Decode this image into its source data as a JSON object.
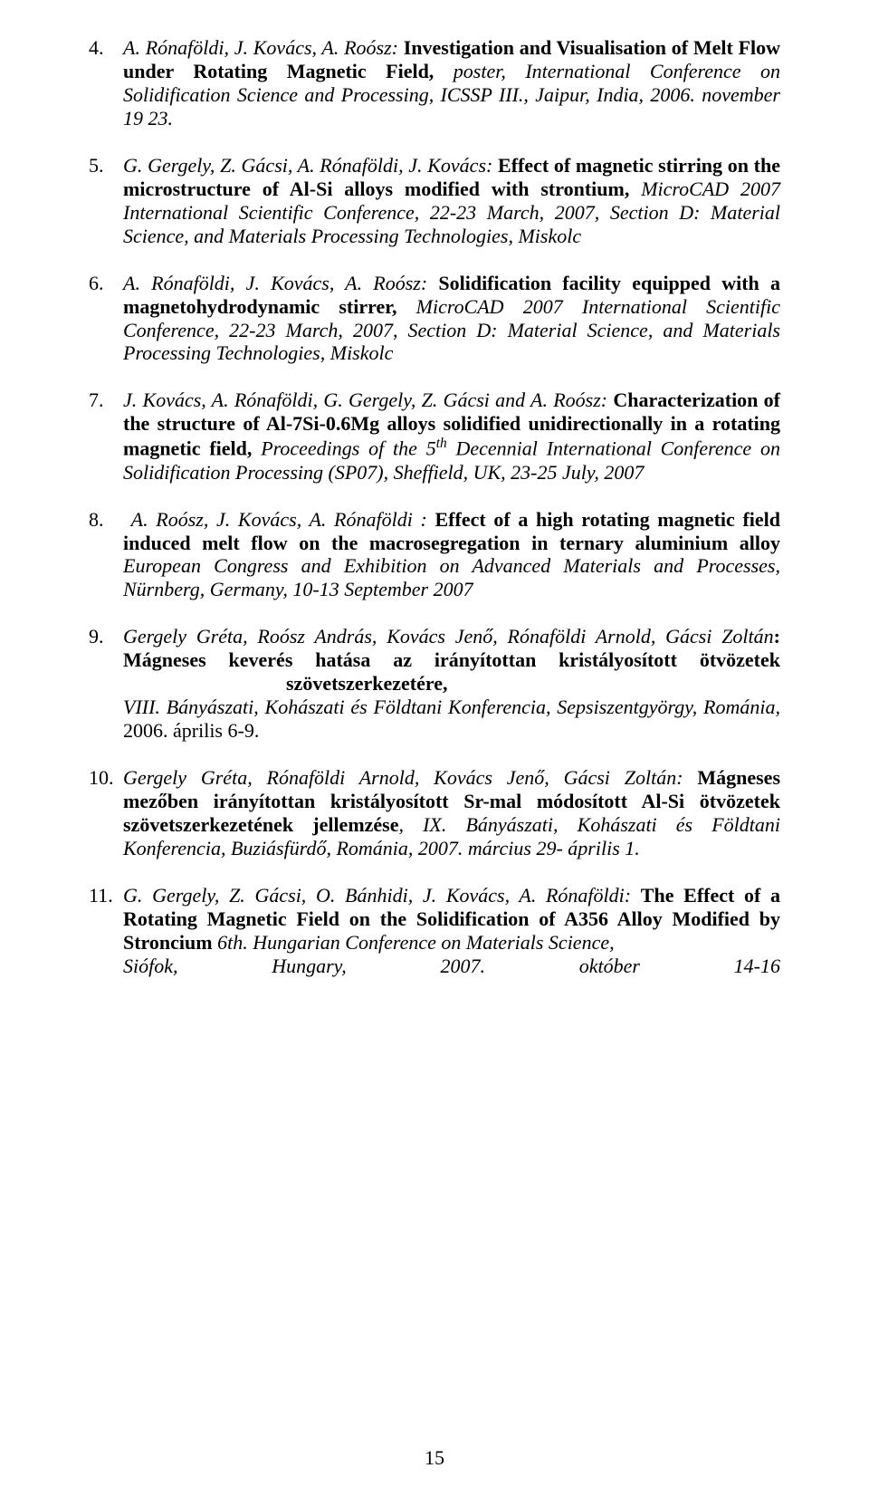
{
  "page_number": "15",
  "references": [
    {
      "authors": "A. Rónaföldi, J. Kovács, A. Roósz:",
      "title": "Investigation and Visualisation of Melt Flow under Rotating Magnetic Field,",
      "details_pre": "poster, International Conference on Solidification Science and Processing, ICSSP III., Jaipur, India, 2006. november 19 23."
    },
    {
      "authors": "G. Gergely, Z. Gácsi, A. Rónaföldi, J. Kovács:",
      "title": "Effect of magnetic stirring on the microstructure of Al-Si alloys modified with strontium,",
      "details_pre": "MicroCAD 2007 International Scientific Conference, 22-23 March, 2007, Section D: Material Science, and Materials Processing Technologies, Miskolc"
    },
    {
      "authors": "A. Rónaföldi, J. Kovács, A. Roósz:",
      "title": "Solidification facility equipped with a magnetohydrodynamic stirrer,",
      "details_pre": "MicroCAD 2007 International Scientific Conference, 22-23 March, 2007, Section D: Material Science, and Materials Processing Technologies, Miskolc"
    },
    {
      "authors": "J. Kovács, A. Rónaföldi, G. Gergely, Z. Gácsi and A. Roósz:",
      "title": "Characterization of the structure of Al-7Si-0.6Mg alloys solidified unidirectionally in a rotating magnetic field,",
      "details_pre": "Proceedings of the 5",
      "sup": "th",
      "details_post": " Decennial International Conference on Solidification Processing (SP07), Sheffield, UK, 23-25 July, 2007"
    },
    {
      "authors": "A. Roósz, J. Kovács, A. Rónaföldi :",
      "title": "Effect of a high rotating magnetic field induced melt flow on the macrosegregation in ternary aluminium alloy",
      "details_pre": "European Congress and Exhibition on Advanced Materials and Processes, Nürnberg, Germany, 10-13 September 2007",
      "leading_space": true
    },
    {
      "authors": "Gergely Gréta, Roósz András, Kovács Jenő, Rónaföldi Arnold, Gácsi Zoltán",
      "authors_after": ":",
      "title": "Mágneses keverés hatása az irányítottan kristályosított ötvözetek",
      "title_right": "szövetszerkezetére,",
      "details_pre": "VIII. Bányászati, Kohászati és Földtani Konferencia, Sepsiszentgyörgy, Románia,",
      "plain_after": " 2006. április 6-9."
    },
    {
      "authors": "Gergely Gréta, Rónaföldi Arnold, Kovács Jenő, Gácsi Zoltán:",
      "title": "Mágneses mezőben irányítottan kristályosított Sr-mal módosított Al-Si ötvözetek szövetszerkezetének jellemzése",
      "title_after_plain": ",",
      "details_pre": "IX. Bányászati, Kohászati és Földtani Konferencia, Buziásfürdő, Románia, 2007. március 29- április 1."
    },
    {
      "authors": "G. Gergely, Z. Gácsi, O. Bánhidi, J. Kovács, A. Rónaföldi:",
      "title": "The Effect of a Rotating Magnetic Field on the Solidification of A356 Alloy Modified by Stroncium",
      "details_pre": "6th. Hungarian Conference on Materials Science,",
      "spread_line": "Siófok, Hungary, 2007. október 14-16",
      "title_trailing_space": true
    }
  ]
}
